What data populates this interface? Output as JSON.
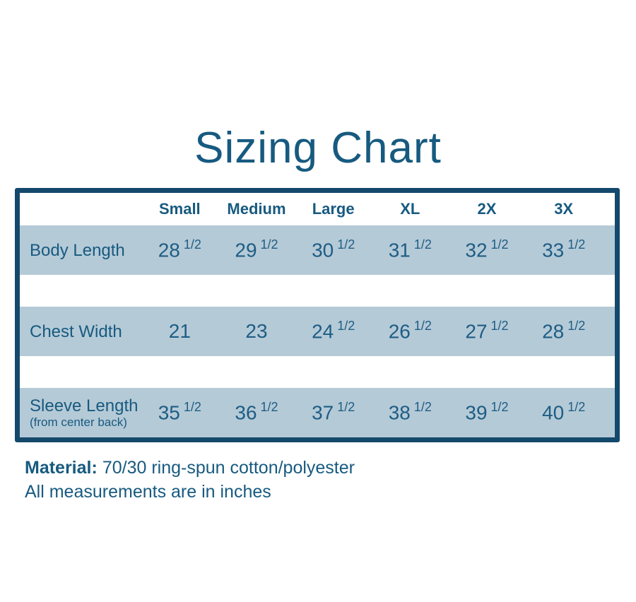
{
  "chart_data": {
    "type": "table",
    "title": "Sizing Chart",
    "columns": [
      "",
      "Small",
      "Medium",
      "Large",
      "XL",
      "2X",
      "3X"
    ],
    "rows": [
      {
        "label": "Body Length",
        "sublabel": "",
        "values": [
          "28 1/2",
          "29 1/2",
          "30 1/2",
          "31 1/2",
          "32 1/2",
          "33 1/2"
        ]
      },
      {
        "label": "Chest Width",
        "sublabel": "",
        "values": [
          "21",
          "23",
          "24 1/2",
          "26 1/2",
          "27 1/2",
          "28 1/2"
        ]
      },
      {
        "label": "Sleeve Length",
        "sublabel": "(from center back)",
        "values": [
          "35 1/2",
          "36 1/2",
          "37 1/2",
          "38 1/2",
          "39 1/2",
          "40 1/2"
        ]
      }
    ],
    "layout": {
      "grid": false,
      "legend": "none",
      "row_striping": "data rows shaded, white spacer rows between"
    }
  },
  "footer": {
    "material_label": "Material:",
    "material_value": "70/30 ring-spun cotton/polyester",
    "note": "All measurements are in inches"
  },
  "colors": {
    "border": "#14496c",
    "text": "#175a80",
    "numbers": "#1e5d84",
    "row_background": "#b5cad7",
    "page_background": "#ffffff"
  }
}
